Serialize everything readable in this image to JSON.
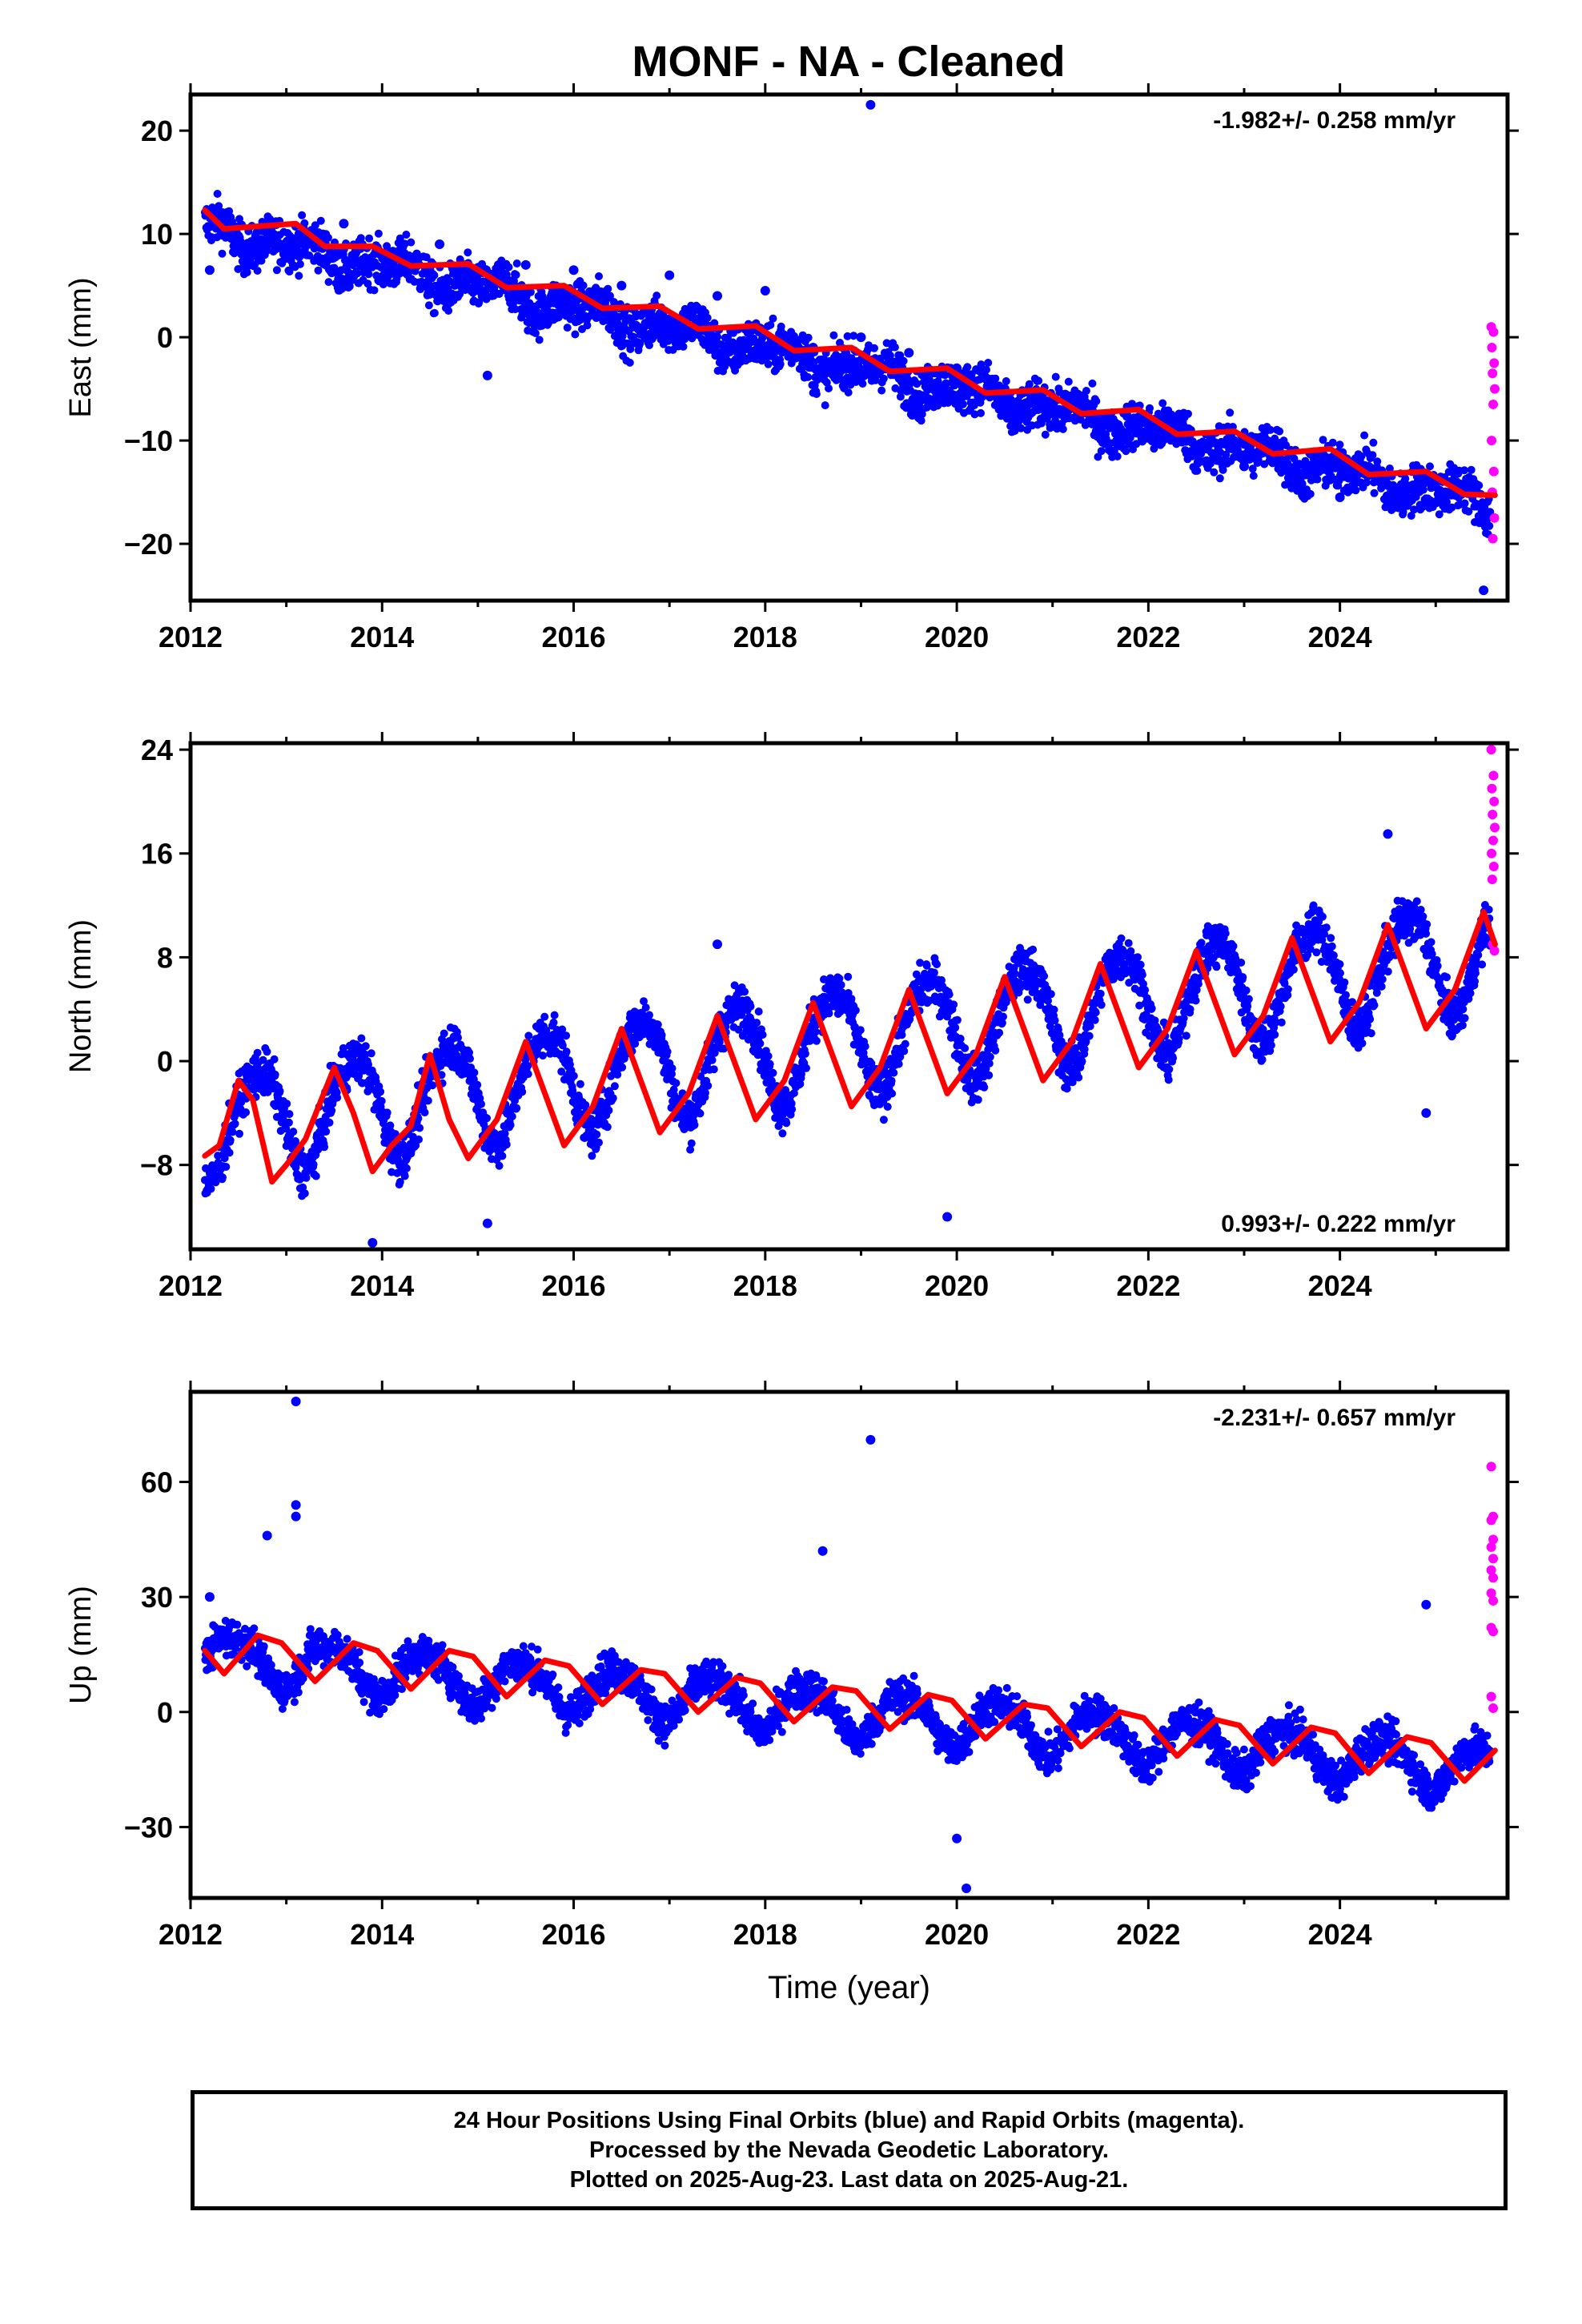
{
  "title": "MONF  - NA - Cleaned",
  "footer": {
    "line1": "24 Hour Positions Using Final Orbits (blue) and Rapid Orbits (magenta).",
    "line2": "Processed by the Nevada Geodetic Laboratory.",
    "line3": "Plotted on 2025-Aug-23. Last data on 2025-Aug-21."
  },
  "colors": {
    "final": "#0000ff",
    "rapid": "#ff00ff",
    "model": "#ff0000",
    "frame": "#000000"
  },
  "chart_data": [
    {
      "type": "scatter",
      "name": "east",
      "ylabel": "East (mm)",
      "xlabel": "",
      "rate_label": "-1.982+/- 0.258 mm/yr",
      "rate_position": "top-right",
      "xlim": [
        2012.0,
        2025.75
      ],
      "ylim": [
        -25.5,
        23.5
      ],
      "xticks": [
        2012,
        2014,
        2016,
        2018,
        2020,
        2022,
        2024
      ],
      "yticks": [
        -20,
        -10,
        0,
        10,
        20
      ],
      "ytick_labels": [
        "−20",
        "−10",
        "0",
        "10",
        "20"
      ],
      "trend": {
        "start": 2012.15,
        "end": 2025.62,
        "slope": -1.982,
        "offset": 10.5,
        "ref": 2012.15,
        "seasonal": {
          "annual_amp": 0.8,
          "phase": 0.1,
          "semi_amp": 0.6,
          "semi_phase": 0.3
        }
      },
      "spread": 2.3,
      "series": [
        {
          "name": "Final Orbits",
          "color": "blue",
          "points": [
            [
              2012.2,
              6.5
            ],
            [
              2012.6,
              9.0
            ],
            [
              2013.1,
              8.0
            ],
            [
              2013.6,
              11.0
            ],
            [
              2014.1,
              8.0
            ],
            [
              2014.6,
              9.0
            ],
            [
              2015.0,
              6.5
            ],
            [
              2015.5,
              7.0
            ],
            [
              2016.0,
              6.5
            ],
            [
              2016.5,
              5.0
            ],
            [
              2017.0,
              6.0
            ],
            [
              2017.5,
              4.0
            ],
            [
              2018.0,
              4.5
            ],
            [
              2018.5,
              -1.0
            ],
            [
              2019.0,
              0.0
            ],
            [
              2019.5,
              -1.5
            ],
            [
              2020.0,
              -3.0
            ],
            [
              2020.5,
              -5.0
            ],
            [
              2021.0,
              -6.0
            ],
            [
              2021.5,
              -8.0
            ],
            [
              2022.0,
              -9.0
            ],
            [
              2022.5,
              -11.0
            ],
            [
              2023.0,
              -12.5
            ],
            [
              2023.5,
              -14.0
            ],
            [
              2024.0,
              -15.5
            ],
            [
              2024.5,
              -16.0
            ],
            [
              2025.0,
              -16.0
            ],
            [
              2025.5,
              -17.0
            ],
            [
              2019.1,
              22.5
            ],
            [
              2015.1,
              -3.7
            ],
            [
              2025.5,
              -24.5
            ]
          ]
        },
        {
          "name": "Rapid Orbits",
          "color": "magenta",
          "x_range": [
            2025.58,
            2025.62
          ],
          "values": [
            1.0,
            0.5,
            -1.0,
            -2.5,
            -3.5,
            -5.0,
            -6.5,
            -10.0,
            -13.0,
            -15.0,
            -17.5,
            -19.5
          ]
        }
      ],
      "model_line": [
        [
          2012.15,
          12.3
        ],
        [
          2012.35,
          10.5
        ],
        [
          2012.8,
          10.8
        ],
        [
          2013.1,
          11.0
        ],
        [
          2013.4,
          8.8
        ],
        [
          2013.9,
          8.8
        ],
        [
          2014.3,
          6.9
        ],
        [
          2014.9,
          7.1
        ],
        [
          2015.3,
          4.8
        ],
        [
          2015.9,
          5.0
        ],
        [
          2016.3,
          2.8
        ],
        [
          2016.9,
          3.0
        ],
        [
          2017.3,
          0.8
        ],
        [
          2017.9,
          1.1
        ],
        [
          2018.3,
          -1.3
        ],
        [
          2018.9,
          -1.0
        ],
        [
          2019.3,
          -3.3
        ],
        [
          2019.9,
          -3.0
        ],
        [
          2020.3,
          -5.4
        ],
        [
          2020.9,
          -5.1
        ],
        [
          2021.3,
          -7.4
        ],
        [
          2021.9,
          -7.0
        ],
        [
          2022.3,
          -9.4
        ],
        [
          2022.9,
          -9.1
        ],
        [
          2023.3,
          -11.3
        ],
        [
          2023.9,
          -10.8
        ],
        [
          2024.3,
          -13.3
        ],
        [
          2024.9,
          -13.0
        ],
        [
          2025.3,
          -15.2
        ],
        [
          2025.62,
          -15.3
        ]
      ]
    },
    {
      "type": "scatter",
      "name": "north",
      "ylabel": "North (mm)",
      "xlabel": "",
      "rate_label": "0.993+/- 0.222 mm/yr",
      "rate_position": "bottom-right",
      "xlim": [
        2012.0,
        2025.75
      ],
      "ylim": [
        -14.5,
        24.5
      ],
      "xticks": [
        2012,
        2014,
        2016,
        2018,
        2020,
        2022,
        2024
      ],
      "yticks": [
        -8,
        0,
        8,
        16,
        24
      ],
      "ytick_labels": [
        "−8",
        "0",
        "8",
        "16",
        "24"
      ],
      "trend": {
        "start": 2012.15,
        "end": 2025.62,
        "slope": 0.993,
        "offset": -5.0,
        "ref": 2012.15,
        "seasonal": {
          "annual_amp": 4.0,
          "phase": 0.55,
          "semi_amp": 0.5,
          "semi_phase": 0.2
        }
      },
      "spread": 1.8,
      "series": [
        {
          "name": "Final Orbits",
          "color": "blue",
          "points": [
            [
              2013.9,
              -14.0
            ],
            [
              2015.1,
              -12.5
            ],
            [
              2019.9,
              -12.0
            ],
            [
              2024.9,
              -4.0
            ],
            [
              2017.5,
              9.0
            ],
            [
              2024.5,
              17.5
            ]
          ]
        },
        {
          "name": "Rapid Orbits",
          "color": "magenta",
          "x_range": [
            2025.58,
            2025.62
          ],
          "values": [
            24.0,
            22.0,
            21.0,
            20.0,
            19.0,
            18.0,
            17.0,
            16.0,
            15.0,
            14.0,
            8.5,
            9.0
          ]
        }
      ],
      "model_line": [
        [
          2012.15,
          -7.3
        ],
        [
          2012.3,
          -6.5
        ],
        [
          2012.5,
          -1.5
        ],
        [
          2012.65,
          -3.0
        ],
        [
          2012.85,
          -9.3
        ],
        [
          2013.0,
          -8.0
        ],
        [
          2013.2,
          -6.0
        ],
        [
          2013.5,
          -0.5
        ],
        [
          2013.7,
          -4.0
        ],
        [
          2013.9,
          -8.5
        ],
        [
          2014.1,
          -6.5
        ],
        [
          2014.3,
          -5.0
        ],
        [
          2014.5,
          0.5
        ],
        [
          2014.7,
          -4.5
        ],
        [
          2014.9,
          -7.5
        ],
        [
          2015.2,
          -4.5
        ],
        [
          2015.5,
          1.5
        ],
        [
          2015.9,
          -6.5
        ],
        [
          2016.2,
          -3.5
        ],
        [
          2016.5,
          2.5
        ],
        [
          2016.9,
          -5.5
        ],
        [
          2017.2,
          -2.5
        ],
        [
          2017.5,
          3.5
        ],
        [
          2017.9,
          -4.5
        ],
        [
          2018.2,
          -1.5
        ],
        [
          2018.5,
          4.5
        ],
        [
          2018.9,
          -3.5
        ],
        [
          2019.2,
          -0.5
        ],
        [
          2019.5,
          5.5
        ],
        [
          2019.9,
          -2.5
        ],
        [
          2020.2,
          0.5
        ],
        [
          2020.5,
          6.5
        ],
        [
          2020.9,
          -1.5
        ],
        [
          2021.2,
          1.5
        ],
        [
          2021.5,
          7.5
        ],
        [
          2021.9,
          -0.5
        ],
        [
          2022.2,
          2.5
        ],
        [
          2022.5,
          8.5
        ],
        [
          2022.9,
          0.5
        ],
        [
          2023.2,
          3.5
        ],
        [
          2023.5,
          9.5
        ],
        [
          2023.9,
          1.5
        ],
        [
          2024.2,
          4.5
        ],
        [
          2024.5,
          10.5
        ],
        [
          2024.9,
          2.5
        ],
        [
          2025.2,
          5.5
        ],
        [
          2025.5,
          11.5
        ],
        [
          2025.62,
          9.0
        ]
      ]
    },
    {
      "type": "scatter",
      "name": "up",
      "ylabel": "Up (mm)",
      "xlabel": "Time (year)",
      "rate_label": "-2.231+/- 0.657 mm/yr",
      "rate_position": "top-right",
      "xlim": [
        2012.0,
        2025.75
      ],
      "ylim": [
        -48.5,
        83.5
      ],
      "xticks": [
        2012,
        2014,
        2016,
        2018,
        2020,
        2022,
        2024
      ],
      "yticks": [
        -30,
        0,
        30,
        60
      ],
      "ytick_labels": [
        "−30",
        "0",
        "30",
        "60"
      ],
      "trend": {
        "start": 2012.15,
        "end": 2025.62,
        "slope": -2.231,
        "offset": 15.0,
        "ref": 2012.15,
        "seasonal": {
          "annual_amp": 6.0,
          "phase": 0.8,
          "semi_amp": 1.0,
          "semi_phase": 0.4
        }
      },
      "spread": 5.0,
      "series": [
        {
          "name": "Final Orbits",
          "color": "blue",
          "points": [
            [
              2013.1,
              81.0
            ],
            [
              2013.1,
              54.0
            ],
            [
              2013.1,
              51.0
            ],
            [
              2019.1,
              71.0
            ],
            [
              2018.6,
              42.0
            ],
            [
              2012.8,
              46.0
            ],
            [
              2020.1,
              -46.0
            ],
            [
              2020.0,
              -33.0
            ],
            [
              2024.9,
              28.0
            ],
            [
              2012.2,
              30.0
            ]
          ]
        },
        {
          "name": "Rapid Orbits",
          "color": "magenta",
          "x_range": [
            2025.58,
            2025.62
          ],
          "values": [
            64.0,
            51.0,
            50.0,
            45.0,
            43.0,
            40.0,
            37.0,
            35.0,
            31.0,
            29.0,
            22.0,
            21.0,
            4.0,
            1.0
          ]
        }
      ],
      "model_line": [
        [
          2012.15,
          16.0
        ],
        [
          2012.35,
          10.0
        ],
        [
          2012.7,
          20.0
        ],
        [
          2012.95,
          18.0
        ],
        [
          2013.3,
          8.0
        ],
        [
          2013.7,
          18.0
        ],
        [
          2013.95,
          16.0
        ],
        [
          2014.3,
          6.0
        ],
        [
          2014.7,
          16.0
        ],
        [
          2014.95,
          14.5
        ],
        [
          2015.3,
          4.0
        ],
        [
          2015.7,
          13.5
        ],
        [
          2015.95,
          12.0
        ],
        [
          2016.3,
          2.0
        ],
        [
          2016.7,
          11.0
        ],
        [
          2016.95,
          10.0
        ],
        [
          2017.3,
          0.0
        ],
        [
          2017.7,
          9.0
        ],
        [
          2017.95,
          7.5
        ],
        [
          2018.3,
          -2.5
        ],
        [
          2018.7,
          6.5
        ],
        [
          2018.95,
          5.5
        ],
        [
          2019.3,
          -4.5
        ],
        [
          2019.7,
          4.5
        ],
        [
          2019.95,
          3.0
        ],
        [
          2020.3,
          -7.0
        ],
        [
          2020.7,
          2.0
        ],
        [
          2020.95,
          1.0
        ],
        [
          2021.3,
          -9.0
        ],
        [
          2021.7,
          0.0
        ],
        [
          2021.95,
          -1.5
        ],
        [
          2022.3,
          -11.5
        ],
        [
          2022.7,
          -2.0
        ],
        [
          2022.95,
          -3.5
        ],
        [
          2023.3,
          -13.5
        ],
        [
          2023.7,
          -4.0
        ],
        [
          2023.95,
          -5.5
        ],
        [
          2024.3,
          -16.0
        ],
        [
          2024.7,
          -6.5
        ],
        [
          2024.95,
          -8.0
        ],
        [
          2025.3,
          -18.0
        ],
        [
          2025.62,
          -10.0
        ]
      ]
    }
  ]
}
